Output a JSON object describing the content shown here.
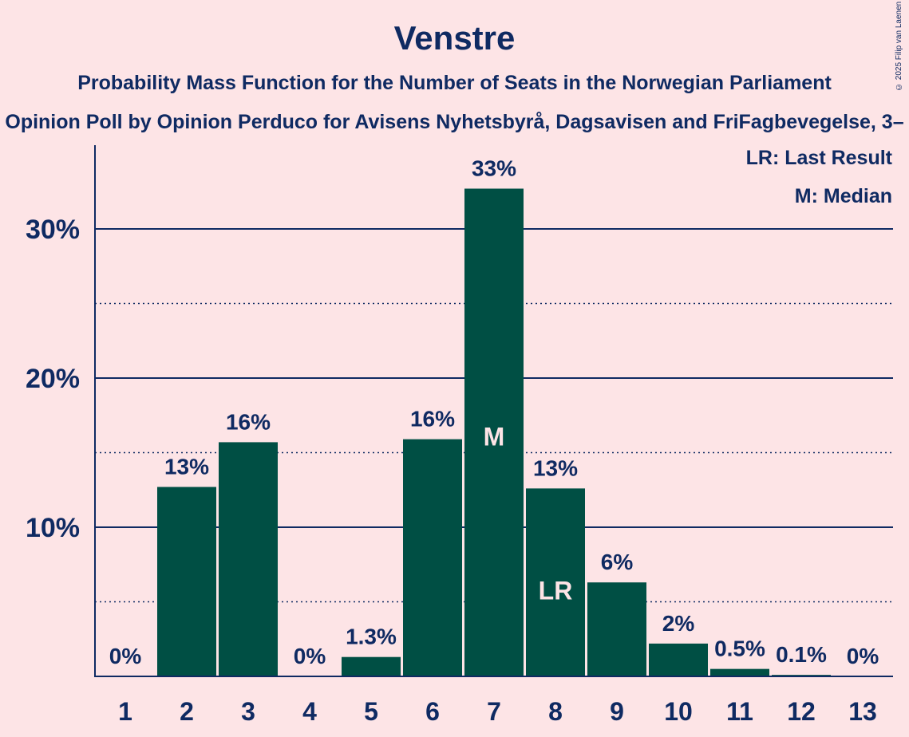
{
  "copyright": "© 2025 Filip van Laenen",
  "legend": {
    "lr": "LR: Last Result",
    "median": "M: Median"
  },
  "colors": {
    "background": "#fde4e6",
    "bar": "#004f44",
    "text": "#0f2a62",
    "marker_text": "#fde4e6"
  },
  "chart_data": {
    "type": "bar",
    "title": "Venstre",
    "subtitle": "Probability Mass Function for the Number of Seats in the Norwegian Parliament",
    "subtitle2": "Opinion Poll by Opinion Perduco for Avisens Nyhetsbyrå, Dagsavisen and FriFagbevegelse, 3–",
    "categories": [
      "1",
      "2",
      "3",
      "4",
      "5",
      "6",
      "7",
      "8",
      "9",
      "10",
      "11",
      "12",
      "13"
    ],
    "values": [
      0,
      12.7,
      15.7,
      0,
      1.3,
      15.9,
      32.7,
      12.6,
      6.3,
      2.2,
      0.5,
      0.1,
      0
    ],
    "data_labels": [
      "0%",
      "13%",
      "16%",
      "0%",
      "1.3%",
      "16%",
      "33%",
      "13%",
      "6%",
      "2%",
      "0.5%",
      "0.1%",
      "0%"
    ],
    "markers": [
      {
        "category": "7",
        "label": "M"
      },
      {
        "category": "8",
        "label": "LR"
      }
    ],
    "ylim": [
      0,
      35
    ],
    "yticks": [
      {
        "value": 10,
        "label": "10%"
      },
      {
        "value": 20,
        "label": "20%"
      },
      {
        "value": 30,
        "label": "30%"
      }
    ],
    "minor_gridlines": [
      5,
      15,
      25
    ],
    "grid": true,
    "legend_position": "top-right",
    "xlabel": "",
    "ylabel": ""
  }
}
